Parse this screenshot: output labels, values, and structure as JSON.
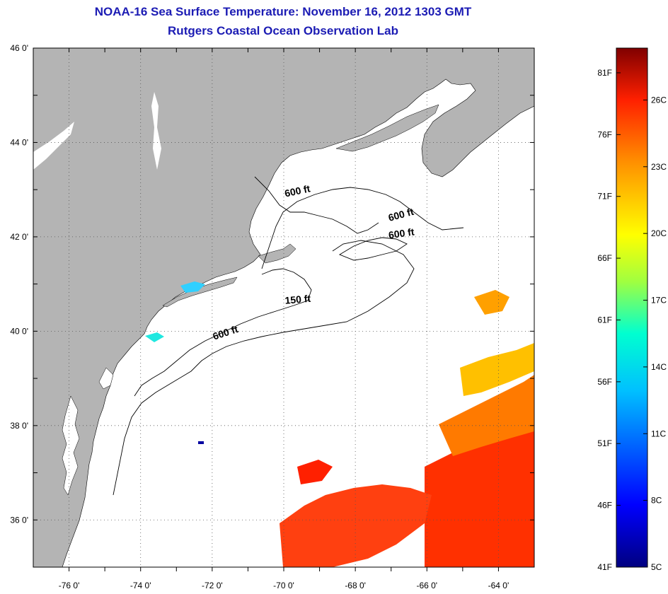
{
  "title": "NOAA-16 Sea Surface Temperature:  November 16, 2012 1303 GMT",
  "subtitle": "Rutgers Coastal Ocean Observation Lab",
  "map": {
    "lon_range": [
      -77,
      -63
    ],
    "lat_range": [
      35,
      46
    ],
    "lon_ticks": [
      "-76 0'",
      "-74 0'",
      "-72 0'",
      "-70 0'",
      "-68 0'",
      "-66 0'",
      "-64 0'"
    ],
    "lat_ticks": [
      "36 0'",
      "38 0'",
      "40 0'",
      "42 0'",
      "44 0'",
      "46 0'"
    ],
    "land_color": "#b4b4b4",
    "contour_labels": [
      {
        "text": "600 ft",
        "lon": -69.6,
        "lat": 42.9
      },
      {
        "text": "600 ft",
        "lon": -66.7,
        "lat": 42.4
      },
      {
        "text": "600 ft",
        "lon": -66.7,
        "lat": 42.0
      },
      {
        "text": "150 ft",
        "lon": -69.6,
        "lat": 40.6
      },
      {
        "text": "600 ft",
        "lon": -71.6,
        "lat": 39.9
      }
    ]
  },
  "colorbar": {
    "fahrenheit": [
      "81F",
      "76F",
      "71F",
      "66F",
      "61F",
      "56F",
      "51F",
      "46F",
      "41F"
    ],
    "celsius": [
      "26C",
      "23C",
      "20C",
      "17C",
      "14C",
      "11C",
      "8C",
      "5C"
    ],
    "colors": [
      "#000080",
      "#0000ff",
      "#0080ff",
      "#00ffff",
      "#80ff80",
      "#ffff00",
      "#ff8000",
      "#ff0000",
      "#800000"
    ]
  }
}
